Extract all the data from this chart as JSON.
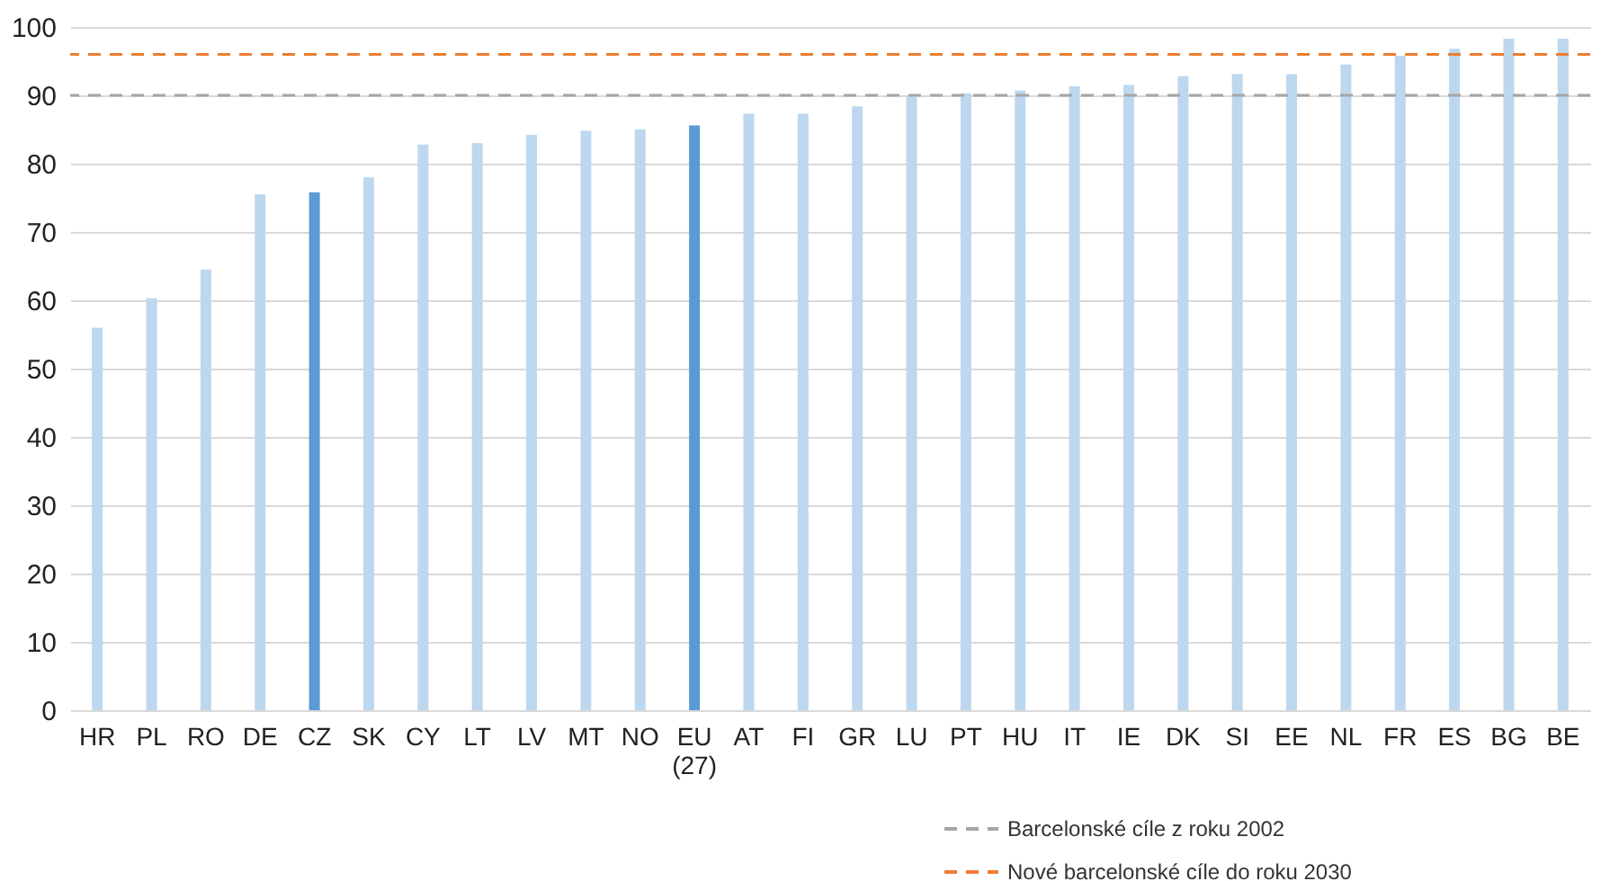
{
  "chart_data": {
    "type": "bar",
    "categories": [
      "HR",
      "PL",
      "RO",
      "DE",
      "CZ",
      "SK",
      "CY",
      "LT",
      "LV",
      "MT",
      "NO",
      "EU (27)",
      "AT",
      "FI",
      "GR",
      "LU",
      "PT",
      "HU",
      "IT",
      "IE",
      "DK",
      "SI",
      "EE",
      "NL",
      "FR",
      "ES",
      "BG",
      "BE"
    ],
    "values": [
      56,
      60.3,
      64.5,
      75.5,
      75.8,
      78,
      82.8,
      83,
      84.2,
      84.8,
      85,
      85.6,
      87.3,
      87.3,
      88.4,
      89.8,
      90.3,
      90.7,
      91.3,
      91.5,
      92.8,
      93.1,
      93.1,
      94.5,
      95.8,
      96.8,
      98.3,
      98.3
    ],
    "colors": [
      "#bdd7ee",
      "#bdd7ee",
      "#bdd7ee",
      "#bdd7ee",
      "#5b9bd5",
      "#bdd7ee",
      "#bdd7ee",
      "#bdd7ee",
      "#bdd7ee",
      "#bdd7ee",
      "#bdd7ee",
      "#5b9bd5",
      "#bdd7ee",
      "#bdd7ee",
      "#bdd7ee",
      "#bdd7ee",
      "#bdd7ee",
      "#bdd7ee",
      "#bdd7ee",
      "#bdd7ee",
      "#bdd7ee",
      "#bdd7ee",
      "#bdd7ee",
      "#bdd7ee",
      "#bdd7ee",
      "#bdd7ee",
      "#bdd7ee",
      "#bdd7ee"
    ],
    "ylim": [
      0,
      100
    ],
    "yticks": [
      0,
      10,
      20,
      30,
      40,
      50,
      60,
      70,
      80,
      90,
      100
    ],
    "grid": "y",
    "ref_lines": [
      {
        "axis": "y",
        "value": 90,
        "label": "Barcelonské cíle z roku 2002",
        "color": "#a5a5a5",
        "line_style": "dashed"
      },
      {
        "axis": "y",
        "value": 96,
        "label": "Nové barcelonské cíle do roku 2030",
        "color": "#ed7d31",
        "line_style": "dashed"
      }
    ],
    "legend": "bottom right"
  }
}
